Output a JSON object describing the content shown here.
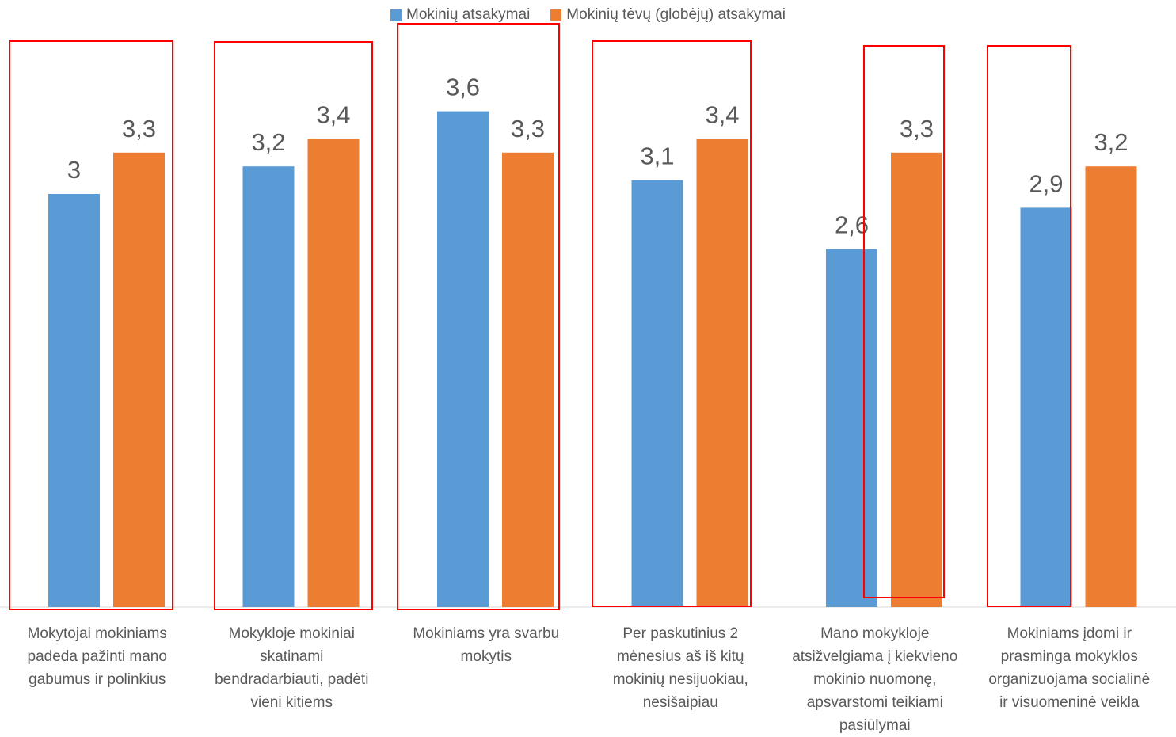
{
  "legend": {
    "series_1": "Mokinių atsakymai",
    "series_2": "Mokinių tėvų (globėjų) atsakymai"
  },
  "colors": {
    "series_1": "#5B9BD5",
    "series_2": "#ED7D31",
    "highlight_box": "#FF0000",
    "axis": "#D9D9D9",
    "text": "#595959"
  },
  "chart_data": {
    "type": "bar",
    "categories": [
      [
        "Mokytojai mokiniams",
        "padeda pažinti mano",
        "gabumus ir polinkius"
      ],
      [
        "Mokykloje mokiniai",
        "skatinami",
        "bendradarbiauti, padėti",
        "vieni kitiems"
      ],
      [
        "Mokiniams yra svarbu",
        "mokytis"
      ],
      [
        "Per paskutinius 2",
        "mėnesius aš iš kitų",
        "mokinių nesijuokiau,",
        "nesišaipiau"
      ],
      [
        "Mano mokykloje",
        "atsižvelgiama į kiekvieno",
        "mokinio nuomonę,",
        "apsvarstomi teikiami",
        "pasiūlymai"
      ],
      [
        "Mokiniams įdomi ir",
        "prasminga mokyklos",
        "organizuojama socialinė",
        "ir visuomeninė veikla"
      ]
    ],
    "series": [
      {
        "name": "Mokinių atsakymai",
        "values": [
          3,
          3.2,
          3.6,
          3.1,
          2.6,
          2.9
        ],
        "labels": [
          "3",
          "3,2",
          "3,6",
          "3,1",
          "2,6",
          "2,9"
        ]
      },
      {
        "name": "Mokinių tėvų (globėjų) atsakymai",
        "values": [
          3.3,
          3.4,
          3.3,
          3.4,
          3.3,
          3.2
        ],
        "labels": [
          "3,3",
          "3,4",
          "3,3",
          "3,4",
          "3,3",
          "3,2"
        ]
      }
    ],
    "ylim": [
      0,
      3.6
    ],
    "grid": false,
    "legend_position": "top-center",
    "highlighted_categories": [
      0,
      1,
      2,
      3,
      4,
      5
    ]
  }
}
